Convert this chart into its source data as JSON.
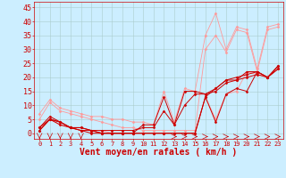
{
  "background_color": "#cceeff",
  "grid_color": "#aacccc",
  "xlabel": "Vent moyen/en rafales ( km/h )",
  "xlabel_color": "#cc0000",
  "xlabel_fontsize": 7,
  "tick_color": "#cc0000",
  "tick_fontsize": 6,
  "xlim": [
    -0.5,
    23.5
  ],
  "ylim": [
    -2,
    47
  ],
  "yticks": [
    0,
    5,
    10,
    15,
    20,
    25,
    30,
    35,
    40,
    45
  ],
  "xticks": [
    0,
    1,
    2,
    3,
    4,
    5,
    6,
    7,
    8,
    9,
    10,
    11,
    12,
    13,
    14,
    15,
    16,
    17,
    18,
    19,
    20,
    21,
    22,
    23
  ],
  "lines_light": [
    {
      "x": [
        0,
        1,
        2,
        3,
        4,
        5,
        6,
        7,
        8,
        9,
        10,
        11,
        12,
        13,
        14,
        15,
        16,
        17,
        18,
        19,
        20,
        21,
        22,
        23
      ],
      "y": [
        7,
        12,
        9,
        8,
        7,
        6,
        6,
        5,
        5,
        4,
        4,
        3,
        15,
        4,
        16,
        15,
        35,
        43,
        30,
        38,
        37,
        23,
        38,
        39
      ]
    },
    {
      "x": [
        0,
        1,
        2,
        3,
        4,
        5,
        6,
        7,
        8,
        9,
        10,
        11,
        12,
        13,
        14,
        15,
        16,
        17,
        18,
        19,
        20,
        21,
        22,
        23
      ],
      "y": [
        5,
        11,
        8,
        7,
        6,
        5,
        4,
        3,
        2,
        2,
        1,
        1,
        1,
        1,
        1,
        1,
        30,
        35,
        29,
        37,
        36,
        22,
        37,
        38
      ]
    },
    {
      "x": [
        0,
        1,
        2,
        3,
        4,
        5,
        6,
        7,
        8,
        9,
        10,
        11,
        12,
        13,
        14,
        15,
        16,
        17,
        18,
        19,
        20,
        21,
        22,
        23
      ],
      "y": [
        2,
        5,
        3,
        2,
        1,
        1,
        1,
        0,
        0,
        0,
        0,
        0,
        0,
        0,
        0,
        0,
        13,
        5,
        14,
        15,
        22,
        21,
        20,
        23
      ]
    }
  ],
  "lines_dark": [
    {
      "x": [
        0,
        1,
        2,
        3,
        4,
        5,
        6,
        7,
        8,
        9,
        10,
        11,
        12,
        13,
        14,
        15,
        16,
        17,
        18,
        19,
        20,
        21,
        22,
        23
      ],
      "y": [
        2,
        6,
        4,
        2,
        1,
        0,
        0,
        0,
        0,
        0,
        3,
        3,
        13,
        3,
        15,
        15,
        14,
        16,
        19,
        20,
        21,
        22,
        20,
        24
      ]
    },
    {
      "x": [
        0,
        1,
        2,
        3,
        4,
        5,
        6,
        7,
        8,
        9,
        10,
        11,
        12,
        13,
        14,
        15,
        16,
        17,
        18,
        19,
        20,
        21,
        22,
        23
      ],
      "y": [
        1,
        5,
        3,
        2,
        2,
        1,
        1,
        1,
        1,
        1,
        2,
        2,
        8,
        3,
        10,
        14,
        14,
        15,
        18,
        19,
        20,
        21,
        20,
        23
      ]
    },
    {
      "x": [
        0,
        1,
        2,
        3,
        4,
        5,
        6,
        7,
        8,
        9,
        10,
        11,
        12,
        13,
        14,
        15,
        16,
        17,
        18,
        19,
        20,
        21,
        22,
        23
      ],
      "y": [
        2,
        5,
        4,
        2,
        2,
        1,
        0,
        0,
        0,
        0,
        0,
        0,
        0,
        0,
        0,
        0,
        13,
        4,
        14,
        16,
        15,
        22,
        20,
        24
      ]
    },
    {
      "x": [
        0,
        1,
        2,
        3,
        4,
        5,
        6,
        7,
        8,
        9,
        10,
        11,
        12,
        13,
        14,
        15,
        16,
        17,
        18,
        19,
        20,
        21,
        22,
        23
      ],
      "y": [
        1,
        5,
        4,
        2,
        1,
        1,
        0,
        0,
        0,
        0,
        0,
        0,
        0,
        0,
        0,
        0,
        13,
        16,
        19,
        19,
        22,
        22,
        20,
        23
      ]
    }
  ],
  "dark_color": "#cc0000",
  "light_color": "#ff9999",
  "marker": "D",
  "markersize": 1.5,
  "linewidth_dark": 0.7,
  "linewidth_light": 0.6
}
